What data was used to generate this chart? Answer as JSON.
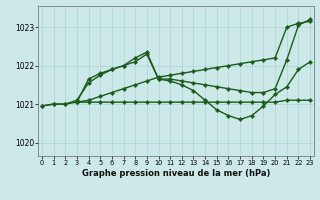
{
  "title": "Graphe pression niveau de la mer (hPa)",
  "bg_color": "#cce8e8",
  "grid_color": "#aad4d4",
  "line_color": "#1a5c1a",
  "xticks": [
    0,
    1,
    2,
    3,
    4,
    5,
    6,
    7,
    8,
    9,
    10,
    11,
    12,
    13,
    14,
    15,
    16,
    17,
    18,
    19,
    20,
    21,
    22,
    23
  ],
  "yticks": [
    1020,
    1021,
    1022,
    1023
  ],
  "ylim": [
    1019.65,
    1023.55
  ],
  "xlim": [
    -0.3,
    23.3
  ],
  "series": [
    {
      "x": [
        0,
        1,
        2,
        3,
        4,
        5,
        6,
        7,
        8,
        9,
        10,
        11,
        12,
        13,
        14,
        15,
        16,
        17,
        18,
        19,
        20,
        21,
        22,
        23
      ],
      "y": [
        1020.95,
        1021.0,
        1021.0,
        1021.05,
        1021.05,
        1021.05,
        1021.05,
        1021.05,
        1021.05,
        1021.05,
        1021.05,
        1021.05,
        1021.05,
        1021.05,
        1021.05,
        1021.05,
        1021.05,
        1021.05,
        1021.05,
        1021.05,
        1021.05,
        1021.1,
        1021.1,
        1021.1
      ]
    },
    {
      "x": [
        0,
        1,
        2,
        3,
        4,
        5,
        6,
        7,
        8,
        9,
        10,
        11,
        12,
        13,
        14,
        15,
        16,
        17,
        18,
        19,
        20,
        21,
        22,
        23
      ],
      "y": [
        1020.95,
        1021.0,
        1021.0,
        1021.1,
        1021.55,
        1021.75,
        1021.9,
        1022.0,
        1022.2,
        1022.35,
        1021.65,
        1021.6,
        1021.5,
        1021.35,
        1021.1,
        1020.85,
        1020.7,
        1020.6,
        1020.7,
        1020.95,
        1021.25,
        1021.45,
        1021.9,
        1022.1
      ]
    },
    {
      "x": [
        3,
        4,
        5,
        6,
        7,
        8,
        9,
        10,
        11,
        12,
        13,
        14,
        15,
        16,
        17,
        18,
        19,
        20,
        21,
        22,
        23
      ],
      "y": [
        1021.05,
        1021.1,
        1021.2,
        1021.3,
        1021.4,
        1021.5,
        1021.6,
        1021.7,
        1021.75,
        1021.8,
        1021.85,
        1021.9,
        1021.95,
        1022.0,
        1022.05,
        1022.1,
        1022.15,
        1022.2,
        1023.0,
        1023.1,
        1023.15
      ]
    },
    {
      "x": [
        3,
        4,
        5,
        6,
        7,
        8,
        9,
        10,
        11,
        12,
        13,
        14,
        15,
        16,
        17,
        18,
        19,
        20,
        21,
        22,
        23
      ],
      "y": [
        1021.05,
        1021.65,
        1021.8,
        1021.9,
        1022.0,
        1022.1,
        1022.3,
        1021.65,
        1021.65,
        1021.6,
        1021.55,
        1021.5,
        1021.45,
        1021.4,
        1021.35,
        1021.3,
        1021.3,
        1021.4,
        1022.15,
        1023.05,
        1023.2
      ]
    }
  ]
}
